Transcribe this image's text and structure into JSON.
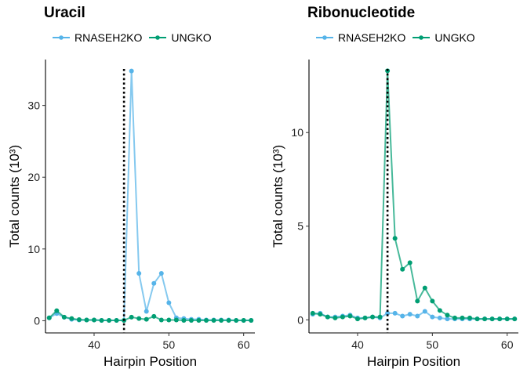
{
  "chart_data": [
    {
      "type": "line",
      "title": "Uracil",
      "xlabel": "Hairpin Position",
      "ylabel": "Total counts (10³)",
      "xlim": [
        33.5,
        61.5
      ],
      "ylim": [
        -1.7,
        36.4
      ],
      "xticks": [
        40,
        50,
        60
      ],
      "yticks": [
        0,
        10,
        20,
        30
      ],
      "vline_x": 44,
      "legend_position": "top",
      "x": [
        34,
        35,
        36,
        37,
        38,
        39,
        40,
        41,
        42,
        43,
        44,
        45,
        46,
        47,
        48,
        49,
        50,
        51,
        52,
        53,
        54,
        55,
        56,
        57,
        58,
        59,
        60,
        61
      ],
      "series": [
        {
          "name": "RNASEH2KO",
          "color": "#56b4e9",
          "values": [
            0.4,
            1.0,
            0.5,
            0.2,
            0.1,
            0.1,
            0.1,
            0.05,
            0.05,
            0.05,
            0.05,
            34.8,
            6.6,
            1.3,
            5.2,
            6.6,
            2.5,
            0.4,
            0.3,
            0.2,
            0.2,
            0.1,
            0.1,
            0.1,
            0.1,
            0.05,
            0.05,
            0.05
          ]
        },
        {
          "name": "UNGKO",
          "color": "#009e73",
          "values": [
            0.4,
            1.4,
            0.5,
            0.3,
            0.15,
            0.1,
            0.1,
            0.05,
            0.05,
            0.05,
            0.05,
            0.5,
            0.3,
            0.2,
            0.6,
            0.1,
            0.1,
            0.1,
            0.05,
            0.05,
            0.05,
            0.05,
            0.05,
            0.05,
            0.05,
            0.05,
            0.05,
            0.05
          ]
        }
      ]
    },
    {
      "type": "line",
      "title": "Ribonucleotide",
      "xlabel": "Hairpin Position",
      "ylabel": "Total counts (10³)",
      "xlim": [
        33.5,
        61.5
      ],
      "ylim": [
        -0.7,
        13.9
      ],
      "xticks": [
        40,
        50,
        60
      ],
      "yticks": [
        0,
        5,
        10
      ],
      "vline_x": 44,
      "legend_position": "top",
      "x": [
        34,
        35,
        36,
        37,
        38,
        39,
        40,
        41,
        42,
        43,
        44,
        45,
        46,
        47,
        48,
        49,
        50,
        51,
        52,
        53,
        54,
        55,
        56,
        57,
        58,
        59,
        60,
        61
      ],
      "series": [
        {
          "name": "RNASEH2KO",
          "color": "#56b4e9",
          "values": [
            0.3,
            0.35,
            0.15,
            0.15,
            0.2,
            0.25,
            0.1,
            0.1,
            0.15,
            0.1,
            0.35,
            0.35,
            0.2,
            0.3,
            0.2,
            0.45,
            0.15,
            0.1,
            0.05,
            0.05,
            0.05,
            0.05,
            0.05,
            0.05,
            0.05,
            0.05,
            0.05,
            0.05
          ]
        },
        {
          "name": "UNGKO",
          "color": "#009e73",
          "values": [
            0.35,
            0.3,
            0.15,
            0.1,
            0.15,
            0.2,
            0.05,
            0.1,
            0.15,
            0.15,
            13.3,
            4.35,
            2.7,
            3.05,
            1.0,
            1.7,
            1.0,
            0.5,
            0.25,
            0.1,
            0.1,
            0.1,
            0.05,
            0.05,
            0.05,
            0.05,
            0.05,
            0.05
          ]
        }
      ]
    }
  ]
}
